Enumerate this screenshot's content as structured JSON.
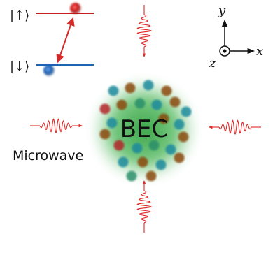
{
  "level_diagram": {
    "up_label": "|↑⟩",
    "down_label": "|↓⟩",
    "upper_level_color": "#c81e1e",
    "lower_level_color": "#1f63b4",
    "transition_color": "#d42a2a"
  },
  "axes": {
    "y_label": "y",
    "x_label": "x",
    "z_label": "z"
  },
  "condensate": {
    "label": "BEC",
    "glow_color": "#3fb04a",
    "atom_colors": [
      "#1e8a9c",
      "#8a4a10",
      "#b3262a",
      "#2c8f6a"
    ]
  },
  "microwave": {
    "label": "Microwave",
    "pulse_color": "#e02828"
  }
}
